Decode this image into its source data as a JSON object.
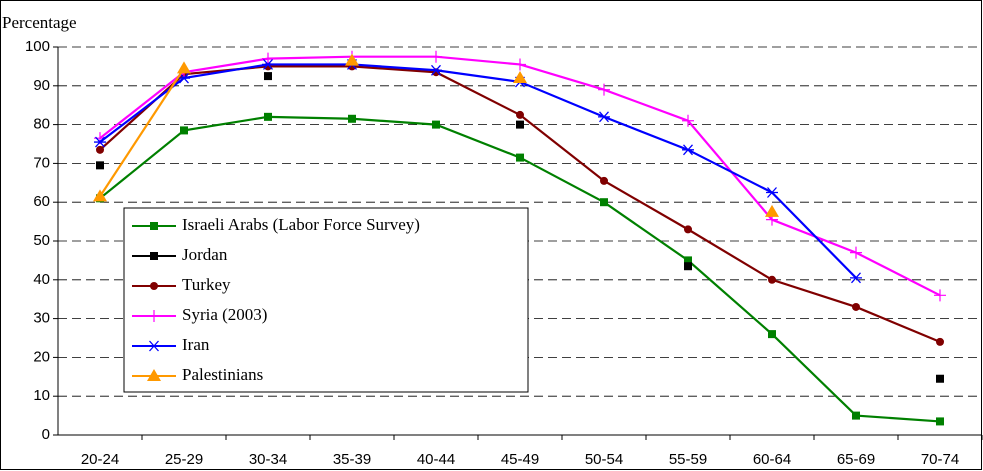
{
  "chart_data": {
    "type": "line",
    "y_label": "Percentage",
    "categories": [
      "20-24",
      "25-29",
      "30-34",
      "35-39",
      "40-44",
      "45-49",
      "50-54",
      "55-59",
      "60-64",
      "65-69",
      "70-74"
    ],
    "ylim": [
      0,
      100
    ],
    "yticks": [
      0,
      10,
      20,
      30,
      40,
      50,
      60,
      70,
      80,
      90,
      100
    ],
    "grid": true,
    "series": [
      {
        "name": "Israeli Arabs (Labor Force Survey)",
        "color": "#008000",
        "marker": "square",
        "values": [
          61,
          78.5,
          82,
          81.5,
          80,
          71.5,
          60,
          45,
          26,
          5,
          3.5
        ]
      },
      {
        "name": "Jordan",
        "color": "#000000",
        "marker": "square",
        "values": [
          69.5,
          null,
          92.5,
          null,
          null,
          80,
          null,
          43.5,
          null,
          null,
          14.5
        ]
      },
      {
        "name": "Turkey",
        "color": "#800000",
        "marker": "circle",
        "values": [
          73.5,
          93,
          95,
          95,
          93.5,
          82.5,
          65.5,
          53,
          40,
          33,
          24
        ]
      },
      {
        "name": "Syria (2003)",
        "color": "#ff00ff",
        "marker": "plus",
        "values": [
          76.5,
          93.5,
          97,
          97.5,
          97.5,
          95.5,
          89,
          81,
          55.5,
          47,
          36
        ]
      },
      {
        "name": "Iran",
        "color": "#0000ff",
        "marker": "star",
        "values": [
          75.5,
          92,
          95.5,
          95.5,
          94,
          91,
          82,
          73.5,
          62.5,
          40.5,
          null
        ]
      },
      {
        "name": "Palestinians",
        "color": "#ff9900",
        "marker": "triangle",
        "values": [
          61.5,
          94.5,
          null,
          96.5,
          null,
          92,
          null,
          null,
          57.5,
          null,
          null
        ]
      }
    ]
  }
}
